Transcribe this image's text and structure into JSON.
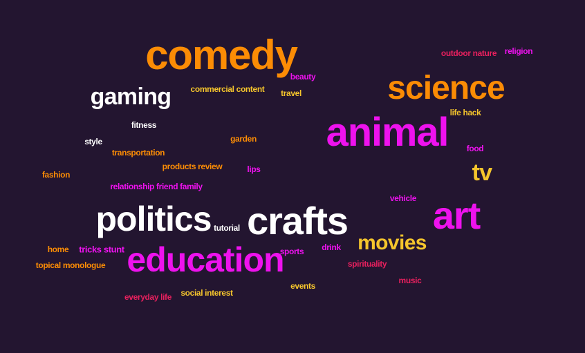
{
  "colors": {
    "background": "#231530",
    "orange": "#fb8c05",
    "magenta": "#ee12ee",
    "white": "#ffffff",
    "yellow": "#f5c52c",
    "pink": "#e8205e"
  },
  "words": [
    {
      "id": "comedy",
      "text": "comedy",
      "color": "#fb8c05"
    },
    {
      "id": "science",
      "text": "science",
      "color": "#fb8c05"
    },
    {
      "id": "animal",
      "text": "animal",
      "color": "#ee12ee"
    },
    {
      "id": "gaming",
      "text": "gaming",
      "color": "#ffffff"
    },
    {
      "id": "tv",
      "text": "tv",
      "color": "#f5c52c"
    },
    {
      "id": "art",
      "text": "art",
      "color": "#ee12ee"
    },
    {
      "id": "politics",
      "text": "politics",
      "color": "#ffffff"
    },
    {
      "id": "crafts",
      "text": "crafts",
      "color": "#ffffff"
    },
    {
      "id": "education",
      "text": "education",
      "color": "#ee12ee"
    },
    {
      "id": "movies",
      "text": "movies",
      "color": "#f5c52c"
    },
    {
      "id": "outdoor-nature",
      "text": "outdoor nature",
      "color": "#e8205e"
    },
    {
      "id": "religion",
      "text": "religion",
      "color": "#ee12ee"
    },
    {
      "id": "beauty",
      "text": "beauty",
      "color": "#ee12ee"
    },
    {
      "id": "commercial-content",
      "text": "commercial content",
      "color": "#f5c52c"
    },
    {
      "id": "travel",
      "text": "travel",
      "color": "#f5c52c"
    },
    {
      "id": "life-hack",
      "text": "life hack",
      "color": "#f5c52c"
    },
    {
      "id": "fitness",
      "text": "fitness",
      "color": "#ffffff"
    },
    {
      "id": "garden",
      "text": "garden",
      "color": "#fb8c05"
    },
    {
      "id": "style",
      "text": "style",
      "color": "#ffffff"
    },
    {
      "id": "transportation",
      "text": "transportation",
      "color": "#fb8c05"
    },
    {
      "id": "food",
      "text": "food",
      "color": "#ee12ee"
    },
    {
      "id": "products-review",
      "text": "products review",
      "color": "#fb8c05"
    },
    {
      "id": "lips",
      "text": "lips",
      "color": "#ee12ee"
    },
    {
      "id": "fashion",
      "text": "fashion",
      "color": "#fb8c05"
    },
    {
      "id": "relationship-friend-family",
      "text": "relationship friend family",
      "color": "#ee12ee"
    },
    {
      "id": "vehicle",
      "text": "vehicle",
      "color": "#ee12ee"
    },
    {
      "id": "tutorial",
      "text": "tutorial",
      "color": "#ffffff"
    },
    {
      "id": "home",
      "text": "home",
      "color": "#fb8c05"
    },
    {
      "id": "tricks-stunt",
      "text": "tricks stunt",
      "color": "#ee12ee"
    },
    {
      "id": "sports",
      "text": "sports",
      "color": "#ee12ee"
    },
    {
      "id": "drink",
      "text": "drink",
      "color": "#ee12ee"
    },
    {
      "id": "topical-monologue",
      "text": "topical monologue",
      "color": "#fb8c05"
    },
    {
      "id": "spirituality",
      "text": "spirituality",
      "color": "#e8205e"
    },
    {
      "id": "music",
      "text": "music",
      "color": "#e8205e"
    },
    {
      "id": "events",
      "text": "events",
      "color": "#f5c52c"
    },
    {
      "id": "social-interest",
      "text": "social interest",
      "color": "#f5c52c"
    },
    {
      "id": "everyday-life",
      "text": "everyday life",
      "color": "#e8205e"
    }
  ]
}
